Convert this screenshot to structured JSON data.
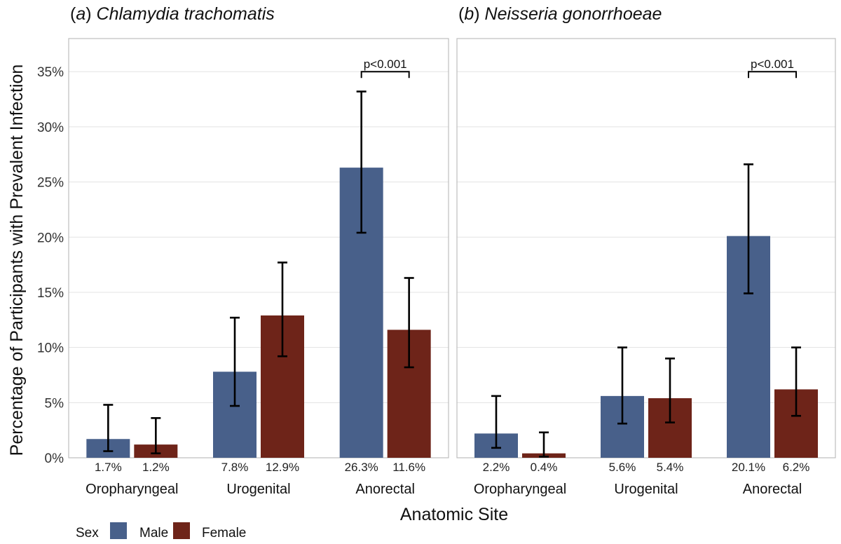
{
  "chart_data": {
    "type": "bar",
    "xlabel": "Anatomic Site",
    "ylabel": "Percentage of Participants with Prevalent Infection",
    "ylim": [
      0,
      38
    ],
    "yticks": [
      0,
      5,
      10,
      15,
      20,
      25,
      30,
      35
    ],
    "ytick_labels": [
      "0%",
      "5%",
      "10%",
      "15%",
      "20%",
      "25%",
      "30%",
      "35%"
    ],
    "categories": [
      "Oropharyngeal",
      "Urogenital",
      "Anorectal"
    ],
    "legend": {
      "title": "Sex",
      "entries": [
        "Male",
        "Female"
      ],
      "placement": "bottom-left"
    },
    "colors": {
      "Male": "#48608a",
      "Female": "#6e2419"
    },
    "panels": [
      {
        "prefix": "(",
        "letter": "a",
        "close": ") ",
        "organism": "Chlamydia trachomatis",
        "series": [
          {
            "name": "Male",
            "values": [
              1.7,
              7.8,
              26.3
            ],
            "labels": [
              "1.7%",
              "7.8%",
              "26.3%"
            ],
            "ci_low": [
              0.6,
              4.7,
              20.4
            ],
            "ci_high": [
              4.8,
              12.7,
              33.2
            ]
          },
          {
            "name": "Female",
            "values": [
              1.2,
              12.9,
              11.6
            ],
            "labels": [
              "1.2%",
              "12.9%",
              "11.6%"
            ],
            "ci_low": [
              0.4,
              9.2,
              8.2
            ],
            "ci_high": [
              3.6,
              17.7,
              16.3
            ]
          }
        ],
        "annotation": {
          "category": "Anorectal",
          "text": "p<0.001",
          "level": 35
        }
      },
      {
        "prefix": "(",
        "letter": "b",
        "close": ") ",
        "organism": "Neisseria gonorrhoeae",
        "series": [
          {
            "name": "Male",
            "values": [
              2.2,
              5.6,
              20.1
            ],
            "labels": [
              "2.2%",
              "5.6%",
              "20.1%"
            ],
            "ci_low": [
              0.9,
              3.1,
              14.9
            ],
            "ci_high": [
              5.6,
              10.0,
              26.6
            ]
          },
          {
            "name": "Female",
            "values": [
              0.4,
              5.4,
              6.2
            ],
            "labels": [
              "0.4%",
              "5.4%",
              "6.2%"
            ],
            "ci_low": [
              0.1,
              3.2,
              3.8
            ],
            "ci_high": [
              2.3,
              9.0,
              10.0
            ]
          }
        ],
        "annotation": {
          "category": "Anorectal",
          "text": "p<0.001",
          "level": 35
        }
      }
    ]
  }
}
